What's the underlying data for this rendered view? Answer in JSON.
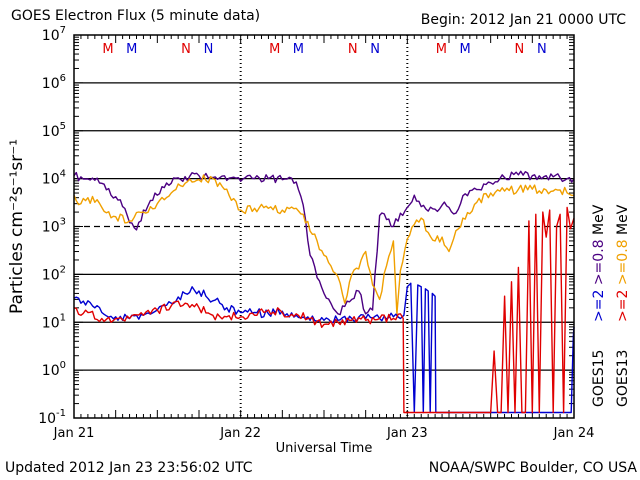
{
  "header": {
    "title": "GOES Electron Flux (5 minute data)",
    "begin": "Begin: 2012 Jan 21 0000 UTC"
  },
  "footer": {
    "updated": "Updated 2012 Jan 23 23:56:02 UTC",
    "credit": "NOAA/SWPC Boulder, CO USA"
  },
  "chart_data": {
    "type": "line",
    "title": "GOES Electron Flux (5 minute data)",
    "xlabel": "Universal Time",
    "ylabel": "Particles cm⁻²s⁻¹sr⁻¹",
    "yscale": "log",
    "ylim": [
      0.1,
      10000000
    ],
    "xlim": [
      "2012-01-21 00:00",
      "2012-01-24 00:00"
    ],
    "x_ticks": [
      "Jan 21",
      "Jan 22",
      "Jan 23",
      "Jan 24"
    ],
    "y_ticks": [
      {
        "base": "10",
        "exp": "-1",
        "value": 0.1
      },
      {
        "base": "10",
        "exp": "0",
        "value": 1
      },
      {
        "base": "10",
        "exp": "1",
        "value": 10
      },
      {
        "base": "10",
        "exp": "2",
        "value": 100
      },
      {
        "base": "10",
        "exp": "3",
        "value": 1000
      },
      {
        "base": "10",
        "exp": "4",
        "value": 10000
      },
      {
        "base": "10",
        "exp": "5",
        "value": 100000
      },
      {
        "base": "10",
        "exp": "6",
        "value": 1000000
      },
      {
        "base": "10",
        "exp": "7",
        "value": 10000000
      }
    ],
    "threshold": {
      "value": 1000,
      "style": "dashed"
    },
    "markers": [
      {
        "label": "M",
        "time": "2012-01-21 04:54",
        "color": "#e00000"
      },
      {
        "label": "M",
        "time": "2012-01-21 08:19",
        "color": "#0000d0"
      },
      {
        "label": "N",
        "time": "2012-01-21 16:08",
        "color": "#e00000"
      },
      {
        "label": "N",
        "time": "2012-01-21 19:22",
        "color": "#0000d0"
      },
      {
        "label": "M",
        "time": "2012-01-22 04:54",
        "color": "#e00000"
      },
      {
        "label": "M",
        "time": "2012-01-22 08:19",
        "color": "#0000d0"
      },
      {
        "label": "N",
        "time": "2012-01-22 16:08",
        "color": "#e00000"
      },
      {
        "label": "N",
        "time": "2012-01-22 19:22",
        "color": "#0000d0"
      },
      {
        "label": "M",
        "time": "2012-01-23 04:54",
        "color": "#e00000"
      },
      {
        "label": "M",
        "time": "2012-01-23 08:19",
        "color": "#0000d0"
      },
      {
        "label": "N",
        "time": "2012-01-23 16:08",
        "color": "#e00000"
      },
      {
        "label": "N",
        "time": "2012-01-23 19:22",
        "color": "#0000d0"
      }
    ],
    "legend": {
      "placement": "right",
      "satellites": [
        {
          "name": "GOES15",
          "entries": [
            {
              "label": ">=2 >=0.8 MeV",
              "parts": [
                {
                  "text": ">=2",
                  "color": "#0000d0"
                },
                {
                  "text": ">=0.8",
                  "color": "#4b0082"
                },
                {
                  "text": "MeV",
                  "color": "#000000"
                }
              ]
            }
          ]
        },
        {
          "name": "GOES13",
          "entries": [
            {
              "label": ">=2 >=0.8 MeV",
              "parts": [
                {
                  "text": ">=2",
                  "color": "#e00000"
                },
                {
                  "text": ">=0.8",
                  "color": "#f0a000"
                },
                {
                  "text": "MeV",
                  "color": "#000000"
                }
              ]
            }
          ]
        }
      ]
    },
    "series": [
      {
        "label": "GOES15 >=0.8 MeV",
        "color": "#4b0082",
        "x_hours": [
          0,
          2,
          4,
          5,
          6,
          7,
          8,
          9,
          10,
          11,
          12,
          13,
          14,
          16,
          18,
          20,
          22,
          24,
          26,
          28,
          30,
          32,
          33,
          34,
          36,
          38,
          40,
          41,
          42,
          43,
          44,
          45,
          46,
          47,
          48,
          49,
          50,
          51,
          52,
          53,
          54,
          55,
          56,
          57,
          58,
          60,
          62,
          64,
          66,
          68,
          70,
          72
        ],
        "y": [
          11500,
          9800,
          8000,
          6200,
          4200,
          2600,
          1200,
          850,
          2200,
          3500,
          4500,
          6500,
          8000,
          11000,
          11500,
          10500,
          9200,
          8800,
          10000,
          10000,
          9500,
          8500,
          2800,
          250,
          40,
          15,
          30,
          45,
          15,
          18,
          1700,
          1400,
          1000,
          1900,
          2500,
          4500,
          2600,
          2100,
          2300,
          2800,
          2500,
          1900,
          4400,
          5600,
          5900,
          8200,
          10500,
          12000,
          11500,
          11500,
          10500,
          9800
        ]
      },
      {
        "label": "GOES13 >=0.8 MeV",
        "color": "#f0a000",
        "x_hours": [
          0,
          1,
          2,
          3,
          4,
          6,
          8,
          10,
          12,
          14,
          16,
          18,
          20,
          22,
          24,
          26,
          28,
          30,
          32,
          33,
          34,
          35,
          36,
          37,
          38,
          39,
          40,
          41,
          42,
          43,
          44,
          45,
          46,
          46.5,
          47,
          48,
          49,
          50,
          51,
          52,
          53,
          54,
          56,
          58,
          60,
          62,
          64,
          66,
          68,
          70,
          72
        ],
        "y": [
          4500,
          3000,
          4000,
          3200,
          2500,
          1600,
          1300,
          2000,
          3000,
          5000,
          8000,
          9500,
          10000,
          6000,
          2200,
          2400,
          2400,
          2200,
          2400,
          1800,
          800,
          500,
          250,
          150,
          90,
          25,
          100,
          130,
          300,
          60,
          30,
          150,
          500,
          15,
          120,
          550,
          1100,
          1500,
          750,
          500,
          600,
          300,
          1500,
          3200,
          5000,
          5500,
          6000,
          6000,
          5800,
          5800,
          4500
        ]
      },
      {
        "label": "GOES15 >=2 MeV",
        "color": "#0000d0",
        "x_hours": [
          0,
          1,
          2,
          3,
          4,
          6,
          8,
          10,
          12,
          14,
          16,
          17,
          18,
          19,
          20,
          21,
          22,
          24,
          26,
          28,
          30,
          32,
          34,
          36,
          38,
          40,
          42,
          44,
          46,
          47,
          47.5,
          48,
          48.5,
          49,
          49.5,
          50,
          50.3,
          50.6,
          51,
          51.3,
          51.6,
          52,
          52.1,
          58,
          65,
          71.6,
          71.9,
          72
        ],
        "y": [
          32,
          25,
          28,
          20,
          16,
          13,
          12,
          14,
          18,
          25,
          40,
          55,
          45,
          35,
          28,
          25,
          20,
          16,
          16,
          15,
          17,
          14,
          11,
          11,
          11,
          12,
          12,
          12,
          13,
          12,
          14,
          55,
          65,
          0.13,
          60,
          55,
          0.13,
          50,
          45,
          0.13,
          40,
          35,
          0.13,
          0.13,
          0.13,
          0.13,
          5,
          8
        ]
      },
      {
        "label": "GOES13 >=2 MeV",
        "color": "#e00000",
        "x_hours": [
          0,
          1,
          2,
          4,
          6,
          8,
          10,
          12,
          14,
          16,
          18,
          20,
          22,
          24,
          26,
          28,
          30,
          32,
          34,
          36,
          38,
          40,
          42,
          44,
          46,
          47,
          47.4,
          47.5,
          48,
          49,
          49.5,
          50,
          55,
          59,
          60,
          60.5,
          61,
          61.5,
          62,
          62.5,
          63,
          63.5,
          64,
          64.5,
          65,
          65.5,
          66,
          66.5,
          67,
          67.5,
          68,
          68.5,
          69,
          69.5,
          70,
          70.5,
          71,
          71.5,
          72
        ],
        "y": [
          20,
          14,
          16,
          12,
          12,
          12,
          14,
          18,
          22,
          25,
          20,
          14,
          13,
          13,
          14,
          18,
          16,
          15,
          12,
          9,
          10,
          11,
          11,
          12,
          12,
          15,
          12,
          0.13,
          0.13,
          0.13,
          0.13,
          0.13,
          0.13,
          0.13,
          0.13,
          2.5,
          0.13,
          0.13,
          35,
          0.13,
          70,
          0.13,
          140,
          0.13,
          0.13,
          1300,
          0.13,
          1800,
          0.13,
          2000,
          600,
          2200,
          0.13,
          1000,
          1800,
          0.13,
          2500,
          900,
          1500
        ]
      }
    ]
  }
}
